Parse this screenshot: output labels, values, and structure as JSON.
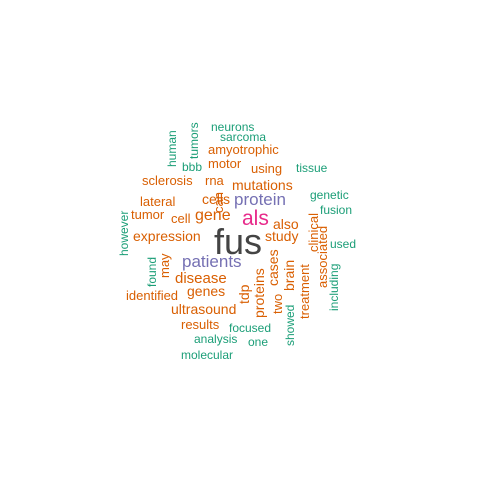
{
  "palette": {
    "teal": "#1b9e77",
    "orange": "#d95f02",
    "purple": "#7570b3",
    "magenta": "#e7298a",
    "dark": "#444444"
  },
  "words": {
    "fus": "fus",
    "als": "als",
    "patients": "patients",
    "protein": "protein",
    "gene": "gene",
    "mutations": "mutations",
    "expression": "expression",
    "disease": "disease",
    "study": "study",
    "cells": "cells",
    "also": "also",
    "tdp": "tdp",
    "proteins": "proteins",
    "cases": "cases",
    "brain": "brain",
    "treatment": "treatment",
    "ultrasound": "ultrasound",
    "genes": "genes",
    "identified": "identified",
    "results": "results",
    "focused": "focused",
    "analysis": "analysis",
    "one": "one",
    "molecular": "molecular",
    "showed": "showed",
    "two": "two",
    "associated": "associated",
    "clinical": "clinical",
    "including": "including",
    "used": "used",
    "fusion": "fusion",
    "genetic": "genetic",
    "tissue": "tissue",
    "using": "using",
    "motor": "motor",
    "amyotrophic": "amyotrophic",
    "sarcoma": "sarcoma",
    "neurons": "neurons",
    "tumors": "tumors",
    "human": "human",
    "bbb": "bbb",
    "rna": "rna",
    "sclerosis": "sclerosis",
    "lateral": "lateral",
    "tumor": "tumor",
    "cell": "cell",
    "can": "can",
    "however": "however",
    "found": "found",
    "may": "may"
  }
}
